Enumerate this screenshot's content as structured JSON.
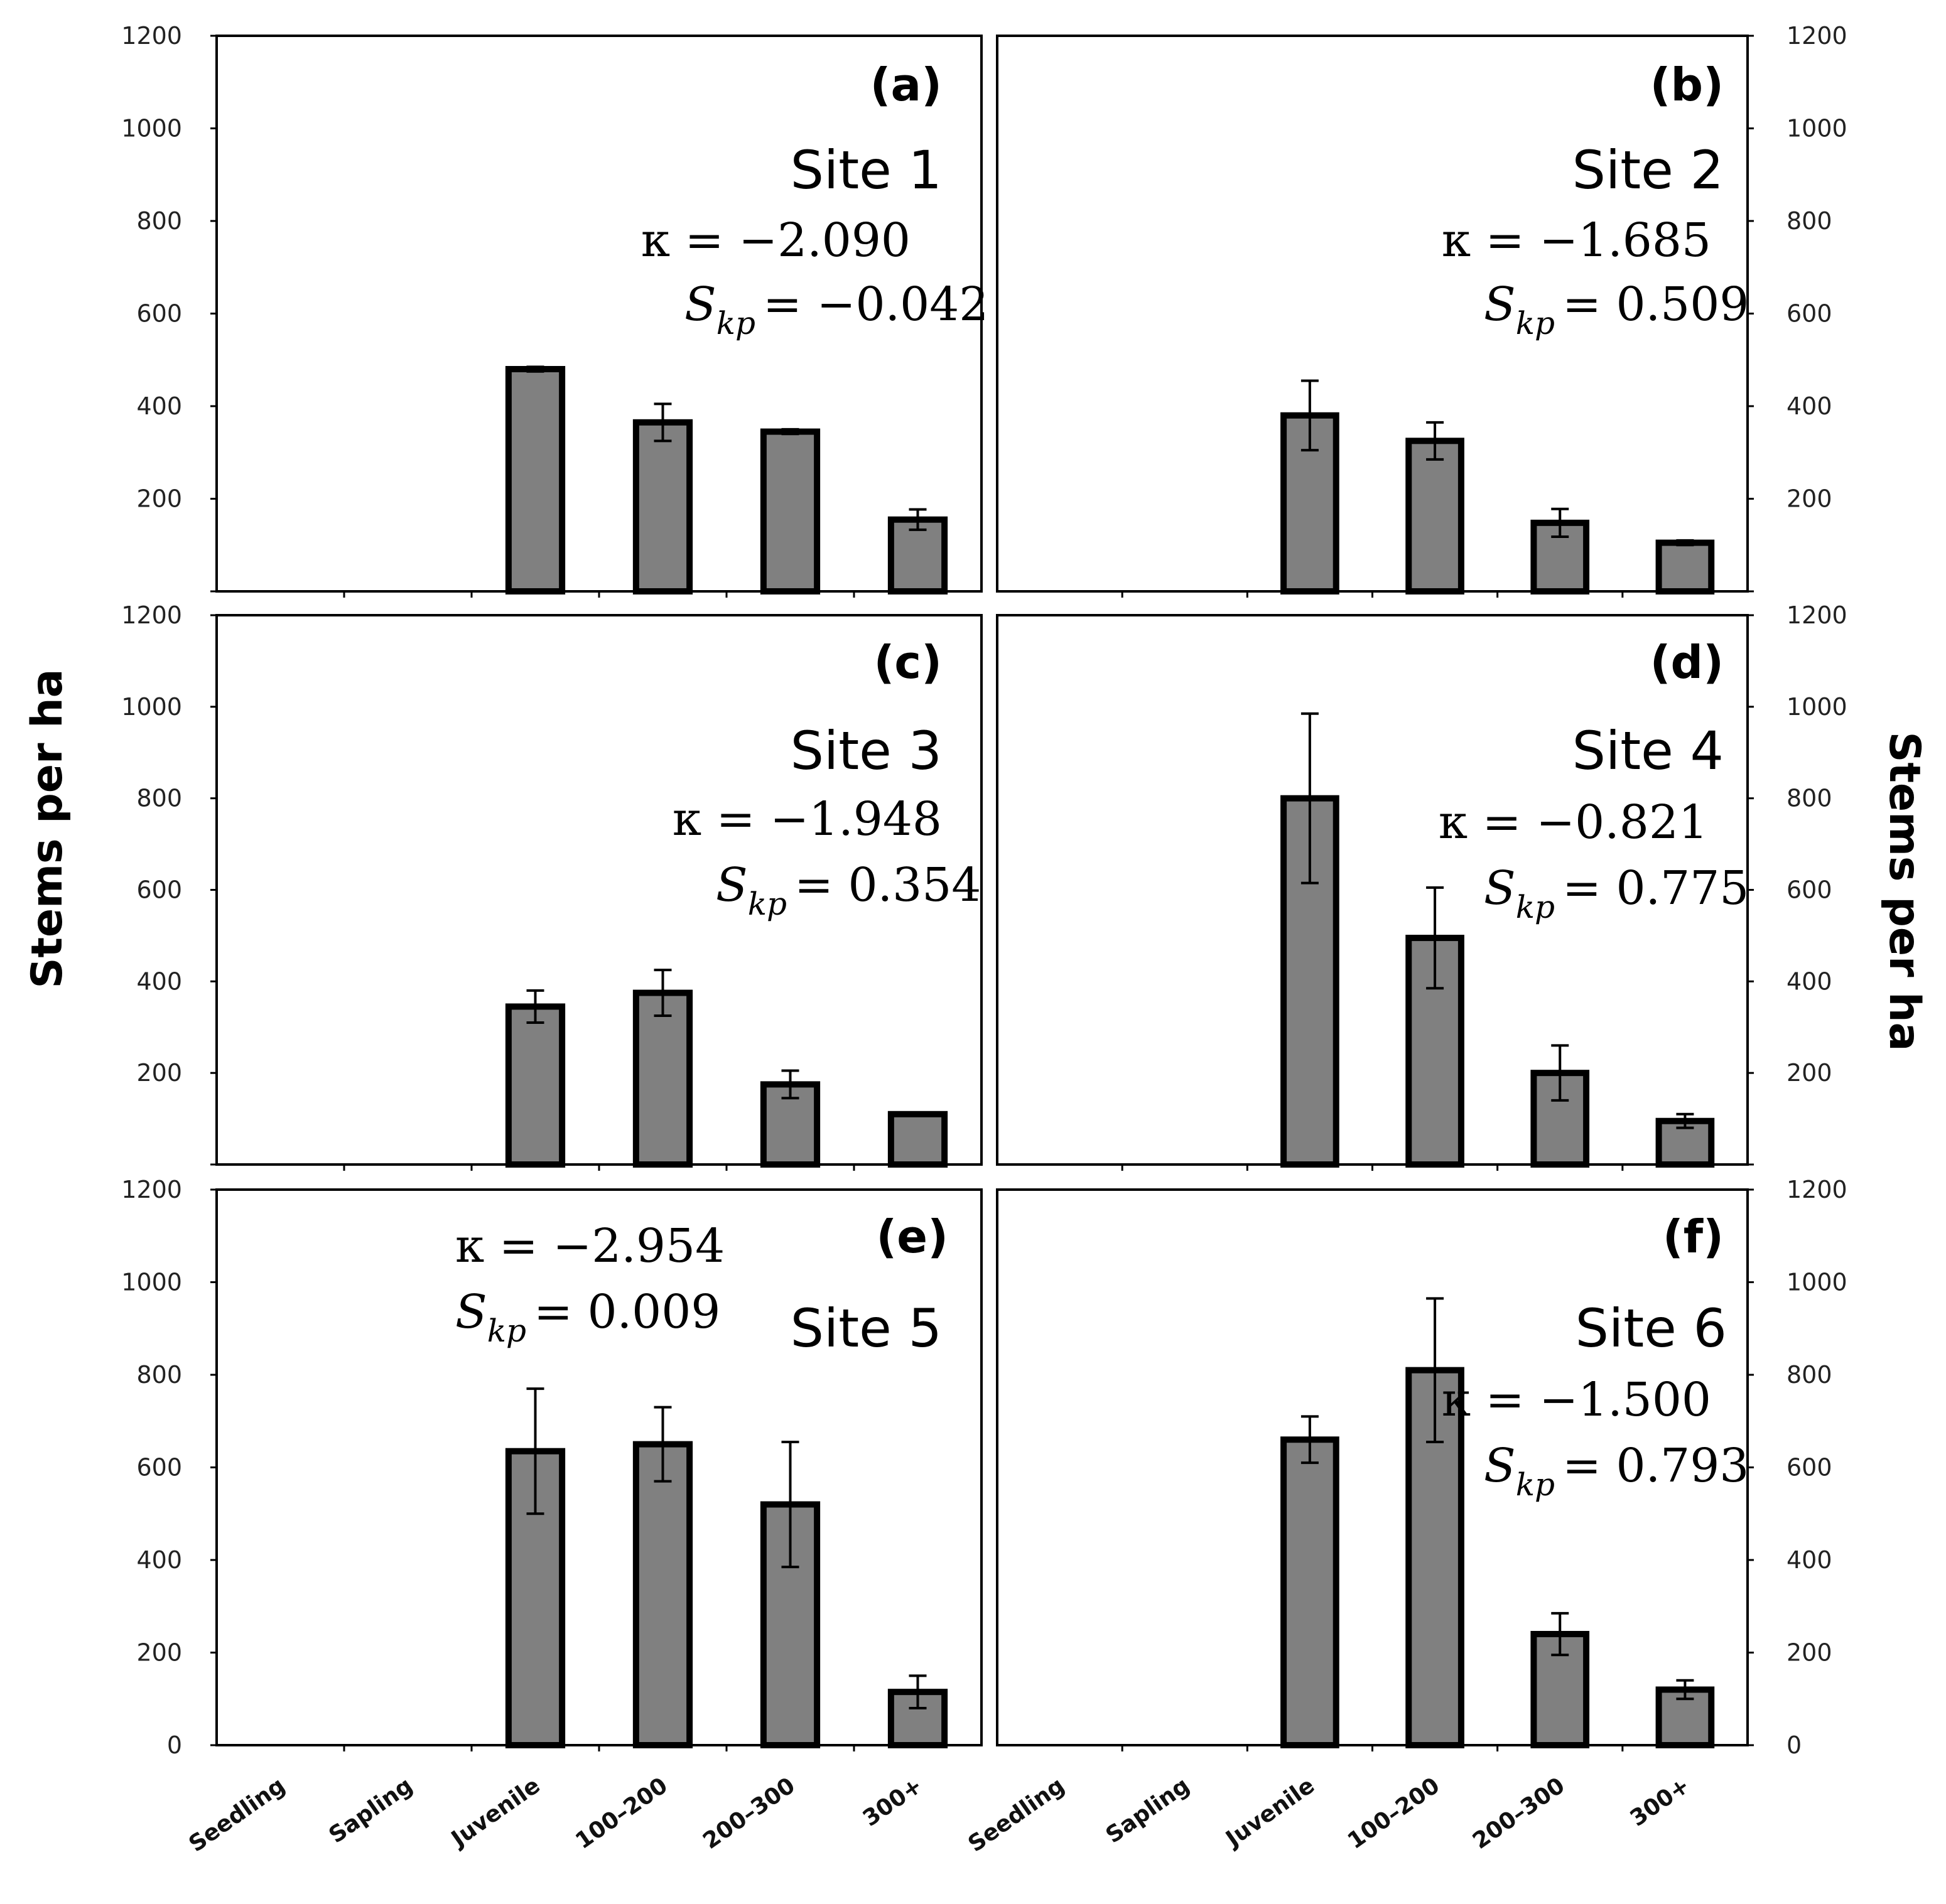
{
  "chart_data": {
    "type": "bar",
    "categories": [
      "Seedling",
      "Sapling",
      "Juvenile",
      "100–200",
      "200–300",
      "300+"
    ],
    "ylabel": "Stems per ha",
    "ylim": [
      0,
      1200
    ],
    "yticks": [
      0,
      200,
      400,
      600,
      800,
      1000,
      1200
    ],
    "panels": [
      {
        "label": "(a)",
        "site": "Site 1",
        "kappa": "κ = −2.090",
        "skp_value": "= −0.042",
        "values": [
          0,
          0,
          480,
          365,
          345,
          155
        ],
        "errors": [
          0,
          0,
          5,
          40,
          5,
          22
        ]
      },
      {
        "label": "(b)",
        "site": "Site 2",
        "kappa": "κ = −1.685",
        "skp_value": "= 0.509",
        "values": [
          0,
          0,
          380,
          325,
          148,
          105
        ],
        "errors": [
          0,
          0,
          75,
          40,
          30,
          5
        ]
      },
      {
        "label": "(c)",
        "site": "Site 3",
        "kappa": "κ = −1.948",
        "skp_value": "= 0.354",
        "values": [
          0,
          0,
          345,
          375,
          175,
          110
        ],
        "errors": [
          0,
          0,
          35,
          50,
          30,
          3
        ]
      },
      {
        "label": "(d)",
        "site": "Site 4",
        "kappa": "κ = −0.821",
        "skp_value": "= 0.775",
        "values": [
          0,
          0,
          800,
          495,
          200,
          95
        ],
        "errors": [
          0,
          0,
          185,
          110,
          60,
          15
        ]
      },
      {
        "label": "(e)",
        "site": "Site 5",
        "kappa": "κ = −2.954",
        "skp_value": "= 0.009",
        "values": [
          0,
          0,
          635,
          650,
          520,
          115
        ],
        "errors": [
          0,
          0,
          135,
          80,
          135,
          35
        ]
      },
      {
        "label": "(f)",
        "site": "Site 6",
        "kappa": "κ = −1.500",
        "skp_value": "= 0.793",
        "values": [
          0,
          0,
          660,
          810,
          240,
          120
        ],
        "errors": [
          0,
          0,
          50,
          155,
          45,
          20
        ]
      }
    ]
  }
}
